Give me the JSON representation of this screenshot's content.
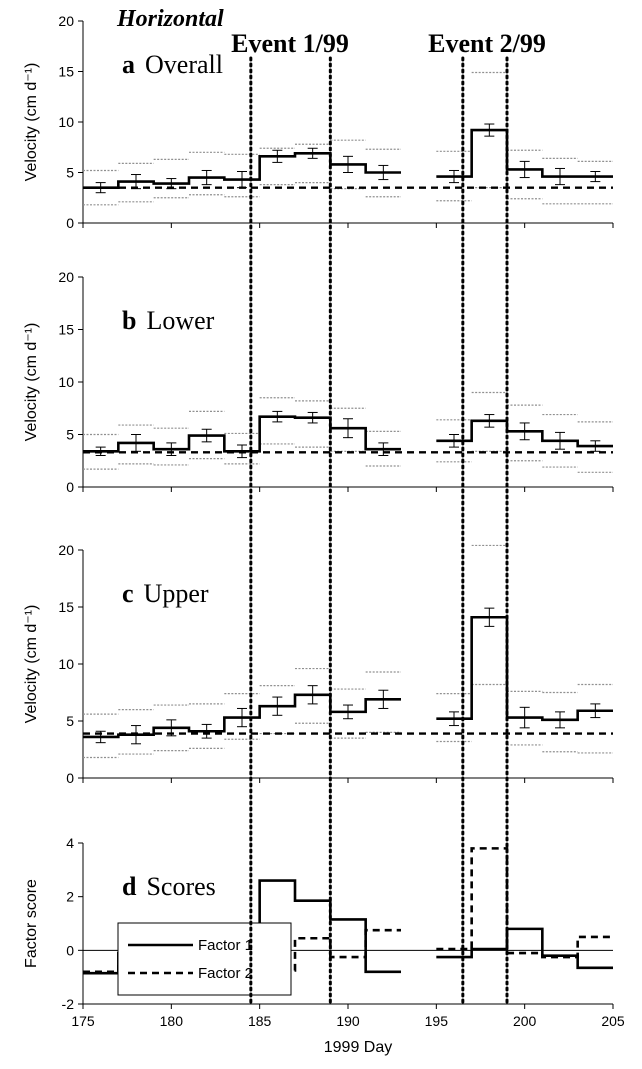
{
  "figure": {
    "title": "Horizontal",
    "xlabel": "1999 Day",
    "events": [
      {
        "label": "Event 1/99",
        "start": 184.5,
        "end": 189
      },
      {
        "label": "Event 2/99",
        "start": 196.5,
        "end": 199
      }
    ],
    "x_ticks": [
      "175",
      "180",
      "185",
      "190",
      "195",
      "200",
      "205"
    ]
  },
  "chart_data": [
    {
      "type": "line",
      "panel_letter": "a",
      "panel_name": "Overall",
      "ylabel": "Velocity (cm d⁻¹)",
      "xlim": [
        175,
        205
      ],
      "ylim": [
        0,
        20
      ],
      "y_ticks": [
        "0",
        "5",
        "10",
        "15",
        "20"
      ],
      "baseline": 3.5,
      "bins": [
        [
          175,
          177
        ],
        [
          177,
          179
        ],
        [
          179,
          181
        ],
        [
          181,
          183
        ],
        [
          183,
          185
        ],
        [
          185,
          187
        ],
        [
          187,
          189
        ],
        [
          189,
          191
        ],
        [
          191,
          193
        ],
        [
          195,
          197
        ],
        [
          197,
          199
        ],
        [
          199,
          201
        ],
        [
          201,
          203
        ],
        [
          203,
          205
        ]
      ],
      "values": [
        3.5,
        4.1,
        3.9,
        4.5,
        4.3,
        6.6,
        6.9,
        5.8,
        5.0,
        4.6,
        9.2,
        5.3,
        4.6,
        4.6
      ],
      "err": [
        0.5,
        0.7,
        0.5,
        0.7,
        0.8,
        0.6,
        0.5,
        0.8,
        0.7,
        0.6,
        0.6,
        0.8,
        0.8,
        0.5
      ],
      "lower_band": [
        1.8,
        2.1,
        2.5,
        2.8,
        2.6,
        3.8,
        4.0,
        3.4,
        2.6,
        2.2,
        3.5,
        2.4,
        1.9,
        1.9
      ],
      "upper_band": [
        5.2,
        5.9,
        6.3,
        7.0,
        6.8,
        7.4,
        7.8,
        8.2,
        7.3,
        7.1,
        14.9,
        7.2,
        6.4,
        6.1
      ]
    },
    {
      "type": "line",
      "panel_letter": "b",
      "panel_name": "Lower",
      "ylabel": "Velocity (cm d⁻¹)",
      "xlim": [
        175,
        205
      ],
      "ylim": [
        0,
        20
      ],
      "y_ticks": [
        "0",
        "5",
        "10",
        "15",
        "20"
      ],
      "baseline": 3.3,
      "bins": [
        [
          175,
          177
        ],
        [
          177,
          179
        ],
        [
          179,
          181
        ],
        [
          181,
          183
        ],
        [
          183,
          185
        ],
        [
          185,
          187
        ],
        [
          187,
          189
        ],
        [
          189,
          191
        ],
        [
          191,
          193
        ],
        [
          195,
          197
        ],
        [
          197,
          199
        ],
        [
          199,
          201
        ],
        [
          201,
          203
        ],
        [
          203,
          205
        ]
      ],
      "values": [
        3.4,
        4.2,
        3.6,
        4.9,
        3.4,
        6.7,
        6.6,
        5.6,
        3.6,
        4.4,
        6.3,
        5.3,
        4.4,
        3.9
      ],
      "err": [
        0.4,
        0.8,
        0.6,
        0.6,
        0.6,
        0.5,
        0.5,
        0.9,
        0.6,
        0.6,
        0.6,
        0.8,
        0.8,
        0.5
      ],
      "lower_band": [
        1.7,
        2.2,
        2.1,
        2.7,
        2.2,
        4.1,
        3.8,
        3.4,
        2.0,
        2.4,
        3.4,
        2.5,
        1.9,
        1.4
      ],
      "upper_band": [
        5.0,
        5.9,
        5.6,
        7.2,
        5.1,
        8.5,
        8.2,
        7.5,
        5.3,
        6.4,
        9.0,
        7.8,
        6.9,
        6.2
      ]
    },
    {
      "type": "line",
      "panel_letter": "c",
      "panel_name": "Upper",
      "ylabel": "Velocity (cm d⁻¹)",
      "xlim": [
        175,
        205
      ],
      "ylim": [
        0,
        20
      ],
      "y_ticks": [
        "0",
        "5",
        "10",
        "15",
        "20"
      ],
      "baseline": 3.9,
      "bins": [
        [
          175,
          177
        ],
        [
          177,
          179
        ],
        [
          179,
          181
        ],
        [
          181,
          183
        ],
        [
          183,
          185
        ],
        [
          185,
          187
        ],
        [
          187,
          189
        ],
        [
          189,
          191
        ],
        [
          191,
          193
        ],
        [
          195,
          197
        ],
        [
          197,
          199
        ],
        [
          199,
          201
        ],
        [
          201,
          203
        ],
        [
          203,
          205
        ]
      ],
      "values": [
        3.6,
        3.8,
        4.4,
        4.1,
        5.3,
        6.3,
        7.3,
        5.8,
        6.9,
        5.2,
        14.1,
        5.3,
        5.1,
        5.9
      ],
      "err": [
        0.5,
        0.8,
        0.7,
        0.6,
        0.8,
        0.8,
        0.8,
        0.6,
        0.8,
        0.6,
        0.8,
        0.9,
        0.7,
        0.6
      ],
      "lower_band": [
        1.8,
        2.1,
        2.4,
        2.6,
        3.4,
        3.9,
        4.8,
        3.5,
        4.0,
        3.2,
        8.2,
        2.9,
        2.3,
        2.2
      ],
      "upper_band": [
        5.6,
        6.0,
        6.4,
        6.5,
        7.4,
        8.1,
        9.6,
        7.8,
        9.3,
        7.4,
        20.4,
        7.6,
        7.5,
        8.2
      ]
    },
    {
      "type": "line",
      "panel_letter": "d",
      "panel_name": "Scores",
      "ylabel": "Factor score",
      "xlim": [
        175,
        205
      ],
      "ylim": [
        -2,
        4
      ],
      "y_ticks": [
        "-2",
        "0",
        "2",
        "4"
      ],
      "legend_position": "top-left",
      "series": [
        {
          "name": "Factor 1",
          "style": "solid",
          "bins": [
            [
              175,
              177
            ],
            [
              177,
              179
            ],
            [
              179,
              181
            ],
            [
              181,
              183
            ],
            [
              183,
              185
            ],
            [
              185,
              187
            ],
            [
              187,
              189
            ],
            [
              189,
              191
            ],
            [
              191,
              193
            ],
            [
              195,
              197
            ],
            [
              197,
              199
            ],
            [
              199,
              201
            ],
            [
              201,
              203
            ],
            [
              203,
              205
            ]
          ],
          "values": [
            -0.85,
            -0.1,
            -0.8,
            0.15,
            -0.55,
            2.6,
            1.85,
            1.15,
            -0.8,
            -0.25,
            0.05,
            0.8,
            -0.2,
            -0.65
          ]
        },
        {
          "name": "Factor 2",
          "style": "dashed",
          "bins": [
            [
              175,
              177
            ],
            [
              177,
              179
            ],
            [
              179,
              181
            ],
            [
              181,
              183
            ],
            [
              183,
              185
            ],
            [
              185,
              187
            ],
            [
              187,
              189
            ],
            [
              189,
              191
            ],
            [
              191,
              193
            ],
            [
              195,
              197
            ],
            [
              197,
              199
            ],
            [
              199,
              201
            ],
            [
              201,
              203
            ],
            [
              203,
              205
            ]
          ],
          "values": [
            -0.8,
            -0.6,
            -0.2,
            -0.8,
            0.05,
            -0.75,
            0.45,
            -0.25,
            0.75,
            0.05,
            3.8,
            -0.1,
            -0.25,
            0.5
          ]
        }
      ]
    }
  ]
}
